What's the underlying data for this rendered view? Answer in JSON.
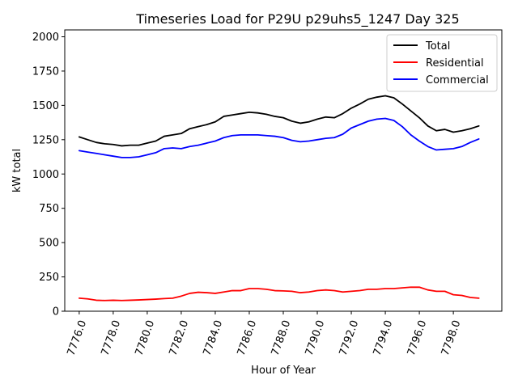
{
  "chart_data": {
    "type": "line",
    "title": "Timeseries Load for P29U p29uhs5_1247  Day 325",
    "xlabel": "Hour of Year",
    "ylabel": "kW total",
    "xlim": [
      7775.15,
      7800.85
    ],
    "ylim": [
      0,
      2050
    ],
    "xticks": [
      7776,
      7778,
      7780,
      7782,
      7784,
      7786,
      7788,
      7790,
      7792,
      7794,
      7796,
      7798
    ],
    "xtick_labels": [
      "7776.0",
      "7778.0",
      "7780.0",
      "7782.0",
      "7784.0",
      "7786.0",
      "7788.0",
      "7790.0",
      "7792.0",
      "7794.0",
      "7796.0",
      "7798.0"
    ],
    "yticks": [
      0,
      250,
      500,
      750,
      1000,
      1250,
      1500,
      1750,
      2000
    ],
    "ytick_labels": [
      "0",
      "250",
      "500",
      "750",
      "1000",
      "1250",
      "1500",
      "1750",
      "2000"
    ],
    "legend_position": "top-right",
    "x": [
      7776.0,
      7776.5,
      7777.0,
      7777.5,
      7778.0,
      7778.5,
      7779.0,
      7779.5,
      7780.0,
      7780.5,
      7781.0,
      7781.5,
      7782.0,
      7782.5,
      7783.0,
      7783.5,
      7784.0,
      7784.5,
      7785.0,
      7785.5,
      7786.0,
      7786.5,
      7787.0,
      7787.5,
      7788.0,
      7788.5,
      7789.0,
      7789.5,
      7790.0,
      7790.5,
      7791.0,
      7791.5,
      7792.0,
      7792.5,
      7793.0,
      7793.5,
      7794.0,
      7794.5,
      7795.0,
      7795.5,
      7796.0,
      7796.5,
      7797.0,
      7797.5,
      7798.0,
      7798.5,
      7799.0,
      7799.5
    ],
    "series": [
      {
        "name": "Total",
        "color": "#000000",
        "values": [
          1270,
          1250,
          1230,
          1220,
          1215,
          1205,
          1210,
          1210,
          1225,
          1240,
          1275,
          1285,
          1295,
          1330,
          1345,
          1360,
          1380,
          1420,
          1430,
          1440,
          1450,
          1445,
          1435,
          1420,
          1410,
          1385,
          1370,
          1380,
          1400,
          1415,
          1410,
          1440,
          1480,
          1510,
          1545,
          1560,
          1570,
          1555,
          1510,
          1460,
          1410,
          1350,
          1315,
          1325,
          1305,
          1315,
          1330,
          1350
        ]
      },
      {
        "name": "Residential",
        "color": "#ff0000",
        "values": [
          95,
          90,
          80,
          78,
          80,
          78,
          80,
          82,
          85,
          88,
          92,
          95,
          110,
          130,
          138,
          135,
          130,
          140,
          150,
          150,
          165,
          165,
          160,
          150,
          148,
          145,
          135,
          140,
          150,
          155,
          150,
          140,
          145,
          150,
          160,
          160,
          165,
          165,
          170,
          175,
          175,
          155,
          145,
          145,
          120,
          115,
          100,
          95
        ]
      },
      {
        "name": "Commercial",
        "color": "#0000ff",
        "values": [
          1170,
          1160,
          1150,
          1140,
          1130,
          1120,
          1120,
          1125,
          1140,
          1155,
          1185,
          1190,
          1185,
          1200,
          1210,
          1225,
          1240,
          1265,
          1280,
          1285,
          1285,
          1285,
          1280,
          1275,
          1265,
          1245,
          1235,
          1240,
          1250,
          1260,
          1265,
          1290,
          1335,
          1360,
          1385,
          1400,
          1405,
          1390,
          1345,
          1285,
          1240,
          1200,
          1175,
          1180,
          1185,
          1200,
          1230,
          1255
        ]
      }
    ]
  }
}
